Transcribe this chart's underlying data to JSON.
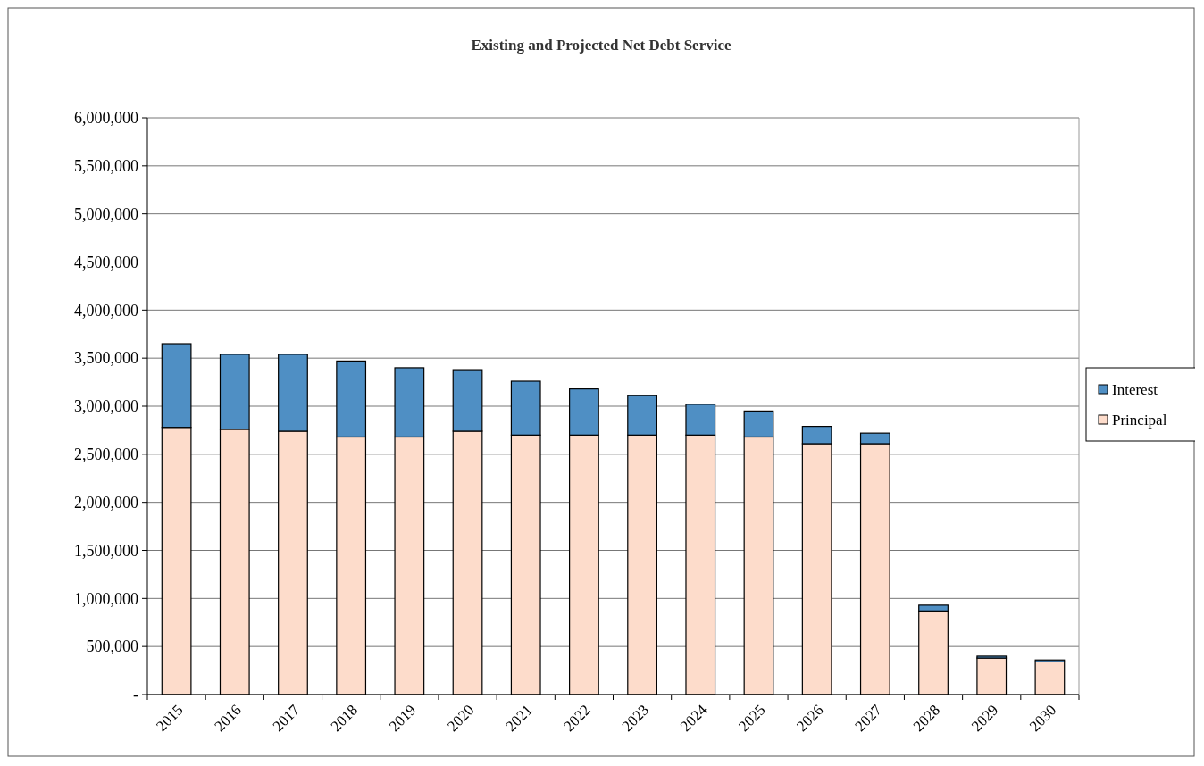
{
  "chart_data": {
    "type": "bar",
    "title": "Existing and Projected Net Debt Service",
    "stacked": true,
    "categories": [
      "2015",
      "2016",
      "2017",
      "2018",
      "2019",
      "2020",
      "2021",
      "2022",
      "2023",
      "2024",
      "2025",
      "2026",
      "2027",
      "2028",
      "2029",
      "2030"
    ],
    "series": [
      {
        "name": "Principal",
        "color": "#fddccb",
        "values": [
          2780000,
          2760000,
          2740000,
          2680000,
          2680000,
          2740000,
          2700000,
          2700000,
          2700000,
          2700000,
          2680000,
          2610000,
          2610000,
          870000,
          380000,
          340000
        ]
      },
      {
        "name": "Interest",
        "color": "#4f8fc4",
        "values": [
          870000,
          780000,
          800000,
          790000,
          720000,
          640000,
          560000,
          480000,
          410000,
          320000,
          270000,
          180000,
          110000,
          60000,
          20000,
          20000
        ]
      }
    ],
    "ylim": [
      0,
      6000000
    ],
    "yticks": [
      {
        "value": 0,
        "label": "-"
      },
      {
        "value": 500000,
        "label": "500,000"
      },
      {
        "value": 1000000,
        "label": "1,000,000"
      },
      {
        "value": 1500000,
        "label": "1,500,000"
      },
      {
        "value": 2000000,
        "label": "2,000,000"
      },
      {
        "value": 2500000,
        "label": "2,500,000"
      },
      {
        "value": 3000000,
        "label": "3,000,000"
      },
      {
        "value": 3500000,
        "label": "3,500,000"
      },
      {
        "value": 4000000,
        "label": "4,000,000"
      },
      {
        "value": 4500000,
        "label": "4,500,000"
      },
      {
        "value": 5000000,
        "label": "5,000,000"
      },
      {
        "value": 5500000,
        "label": "5,500,000"
      },
      {
        "value": 6000000,
        "label": "6,000,000"
      }
    ],
    "grid": "y",
    "legend": "right"
  }
}
